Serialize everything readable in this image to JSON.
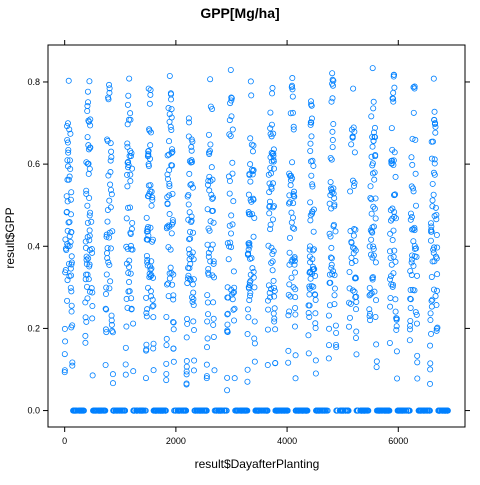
{
  "chart_data": {
    "type": "scatter",
    "title": "GPP[Mg/ha]",
    "xlabel": "result$DayafterPlanting",
    "ylabel": "result$GPP",
    "xlim": [
      -300,
      7200
    ],
    "ylim": [
      -0.04,
      0.89
    ],
    "x_ticks": [
      0,
      2000,
      4000,
      6000
    ],
    "x_tick_labels": [
      "0",
      "2000",
      "4000",
      "6000"
    ],
    "y_ticks": [
      0.0,
      0.2,
      0.4,
      0.6,
      0.8
    ],
    "y_tick_labels": [
      "0.0",
      "0.2",
      "0.4",
      "0.6",
      "0.8"
    ],
    "grid": false,
    "marker": "open-circle",
    "marker_color": "#0080ff",
    "series": [
      {
        "points_description_note": "",
        "seasons": [
          {
            "start": 0,
            "peak": 0.82
          },
          {
            "start": 365,
            "peak": 0.83
          },
          {
            "start": 730,
            "peak": 0.82
          },
          {
            "start": 1095,
            "peak": 0.83
          },
          {
            "start": 1460,
            "peak": 0.83
          },
          {
            "start": 1825,
            "peak": 0.84
          },
          {
            "start": 2190,
            "peak": 0.83
          },
          {
            "start": 2555,
            "peak": 0.83
          },
          {
            "start": 2920,
            "peak": 0.83
          },
          {
            "start": 3285,
            "peak": 0.84
          },
          {
            "start": 3650,
            "peak": 0.84
          },
          {
            "start": 4015,
            "peak": 0.83
          },
          {
            "start": 4380,
            "peak": 0.83
          },
          {
            "start": 4745,
            "peak": 0.84
          },
          {
            "start": 5110,
            "peak": 0.83
          },
          {
            "start": 5475,
            "peak": 0.84
          },
          {
            "start": 5840,
            "peak": 0.84
          },
          {
            "start": 6205,
            "peak": 0.83
          },
          {
            "start": 6570,
            "peak": 0.82
          }
        ],
        "season_length_days": 365,
        "zero_gpp_value": 0.0
      }
    ]
  },
  "colors": {
    "points": "#0080ff",
    "frame": "#000000",
    "background": "#ffffff"
  }
}
